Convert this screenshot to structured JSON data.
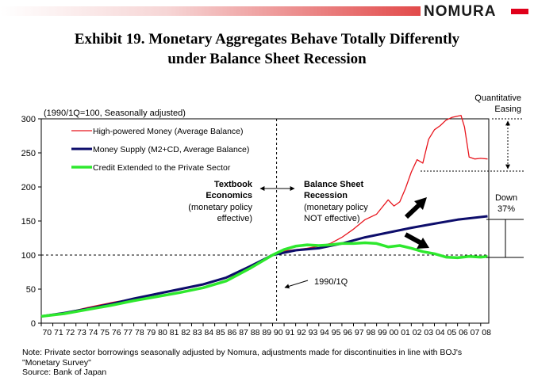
{
  "header": {
    "brand": "NOMURA",
    "title_line1": "Exhibit 19.  Monetary Aggregates Behave Totally Differently",
    "title_line2": "under Balance Sheet Recession"
  },
  "chart_data": {
    "type": "line",
    "subtitle": "(1990/1Q=100, Seasonally adjusted)",
    "xlabel": "",
    "ylabel": "",
    "ylim": [
      0,
      300
    ],
    "xlim": [
      1970,
      2008.7
    ],
    "yticks": [
      0,
      50,
      100,
      150,
      200,
      250,
      300
    ],
    "xtick_labels": [
      "70",
      "71",
      "72",
      "73",
      "74",
      "75",
      "76",
      "77",
      "78",
      "79",
      "80",
      "81",
      "82",
      "83",
      "84",
      "85",
      "86",
      "87",
      "88",
      "89",
      "90",
      "91",
      "92",
      "93",
      "94",
      "95",
      "96",
      "97",
      "98",
      "99",
      "00",
      "01",
      "02",
      "03",
      "04",
      "05",
      "06",
      "07",
      "08"
    ],
    "grid": false,
    "legend_position": "top-left",
    "reference_line": {
      "y": 100
    },
    "reference_vline": {
      "x": 1990
    },
    "series": [
      {
        "name": "High-powered Money (Average Balance)",
        "color": "#e8141c",
        "x": [
          1970,
          1972,
          1974,
          1976,
          1978,
          1980,
          1982,
          1984,
          1986,
          1988,
          1990,
          1991,
          1992,
          1993,
          1994,
          1995,
          1996,
          1997,
          1998,
          1999,
          2000,
          2000.5,
          2001,
          2001.5,
          2002,
          2002.5,
          2003,
          2003.5,
          2004,
          2004.5,
          2005,
          2005.5,
          2006,
          2006.3,
          2006.6,
          2007,
          2007.5,
          2008,
          2008.6
        ],
        "values": [
          11,
          15,
          23,
          30,
          36,
          44,
          49,
          56,
          66,
          80,
          100,
          106,
          108,
          110,
          113,
          117,
          126,
          138,
          152,
          160,
          181,
          172,
          178,
          198,
          222,
          240,
          235,
          270,
          284,
          290,
          298,
          302,
          304,
          305,
          288,
          244,
          241,
          242,
          241
        ]
      },
      {
        "name": "Money Supply (M2+CD, Average Balance)",
        "color": "#0d0d6b",
        "x": [
          1970,
          1972,
          1974,
          1976,
          1978,
          1980,
          1982,
          1984,
          1986,
          1988,
          1990,
          1992,
          1994,
          1996,
          1998,
          2000,
          2002,
          2004,
          2006,
          2008.6
        ],
        "values": [
          10,
          15,
          21,
          28,
          36,
          43,
          50,
          57,
          67,
          83,
          100,
          107,
          110,
          117,
          126,
          133,
          140,
          146,
          152,
          157
        ]
      },
      {
        "name": "Credit Extended to the Private Sector",
        "color": "#2ee82e",
        "x": [
          1970,
          1972,
          1974,
          1976,
          1978,
          1980,
          1982,
          1984,
          1986,
          1988,
          1990,
          1991,
          1992,
          1993,
          1994,
          1995,
          1996,
          1997,
          1998,
          1999,
          2000,
          2001,
          2002,
          2003,
          2004,
          2005,
          2006,
          2007,
          2008,
          2008.6
        ],
        "values": [
          10,
          14,
          20,
          26,
          33,
          39,
          45,
          52,
          62,
          80,
          100,
          108,
          113,
          115,
          114,
          115,
          117,
          117,
          118,
          117,
          112,
          114,
          110,
          105,
          102,
          97,
          96,
          98,
          97,
          98
        ]
      }
    ]
  },
  "annotations": {
    "textbook_title": "Textbook Economics",
    "textbook_l1": "Textbook",
    "textbook_l2": "Economics",
    "textbook_l3": "(monetary policy",
    "textbook_l4": "effective)",
    "bsr_title": "Balance Sheet Recession",
    "bsr_l1": "Balance Sheet",
    "bsr_l2": "Recession",
    "bsr_l3": "(monetary policy",
    "bsr_l4": "NOT effective)",
    "q1990": "1990/1Q",
    "qe_l1": "Quantitative",
    "qe_l2": "Easing",
    "down_l1": "Down",
    "down_l2": "37%"
  },
  "footer": {
    "note_l1": "Note: Private sector borrowings seasonally adjusted by Nomura, adjustments made for discontinuities in line with BOJ's",
    "note_l2": "\"Monetary Survey\"",
    "source": "Source: Bank of Japan"
  }
}
